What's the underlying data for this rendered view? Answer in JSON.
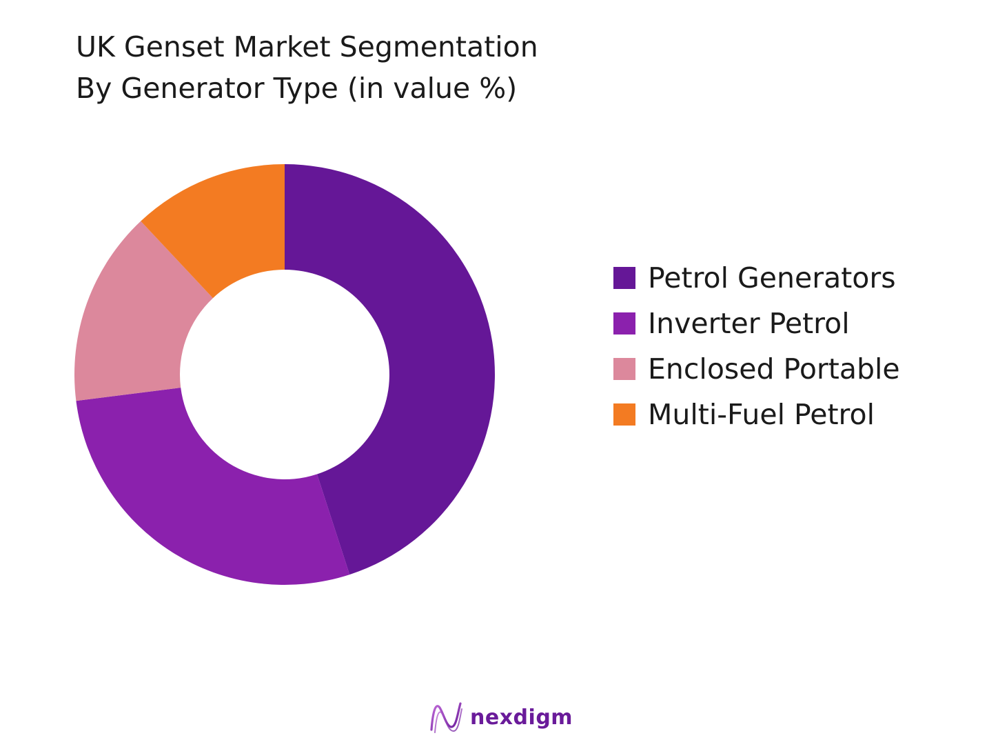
{
  "chart_data": {
    "type": "pie",
    "variant": "donut",
    "title": [
      "UK Genset Market Segmentation",
      "By Generator Type (in value %)"
    ],
    "categories": [
      "Petrol Generators",
      "Inverter Petrol",
      "Enclosed Portable",
      "Multi-Fuel Petrol"
    ],
    "values": [
      45,
      28,
      15,
      12
    ],
    "colors": [
      "#651797",
      "#8b21ad",
      "#dc889c",
      "#f37b22"
    ],
    "legend_position": "right",
    "start_angle": "top",
    "direction": "clockwise"
  },
  "brand": {
    "name": "nexdigm",
    "logo_icon": "nexdigm-wave-logo",
    "color": "#6a1b9a"
  }
}
